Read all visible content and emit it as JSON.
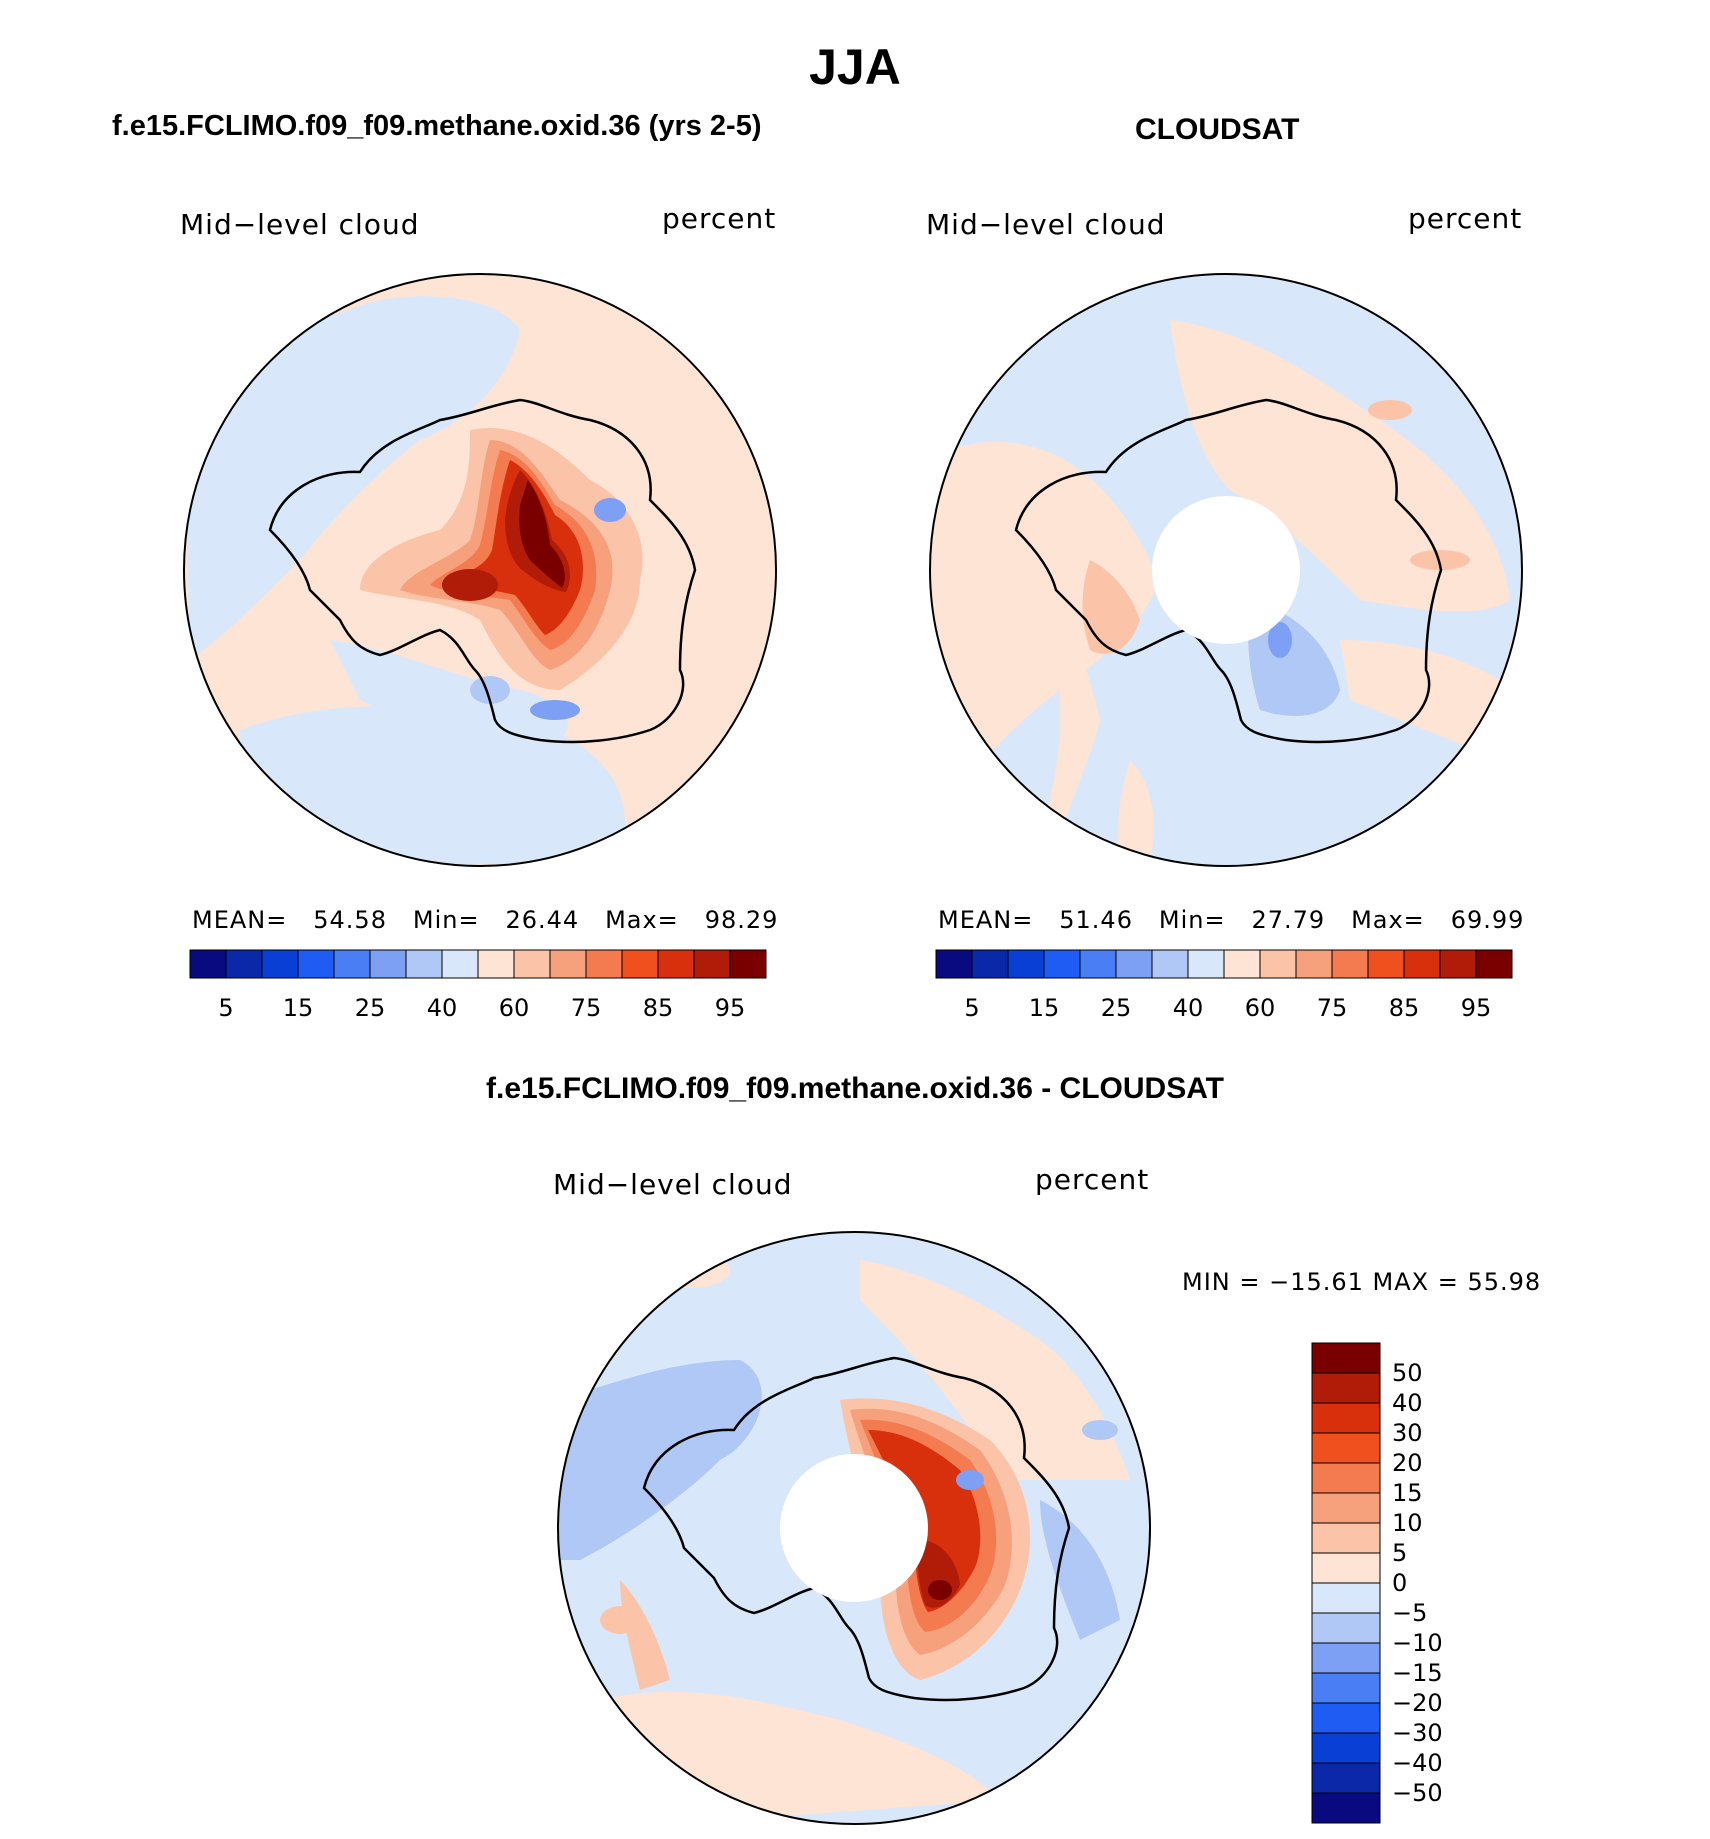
{
  "main_title": "JJA",
  "panels": {
    "left": {
      "case_title": "f.e15.FCLIMO.f09_f09.methane.oxid.36 (yrs 2-5)",
      "variable": "Mid−level cloud",
      "units": "percent",
      "stats": {
        "mean_label": "MEAN=",
        "mean": "54.58",
        "min_label": "Min=",
        "min": "26.44",
        "max_label": "Max=",
        "max": "98.29"
      }
    },
    "right": {
      "case_title": "CLOUDSAT",
      "variable": "Mid−level cloud",
      "units": "percent",
      "stats": {
        "mean_label": "MEAN=",
        "mean": "51.46",
        "min_label": "Min=",
        "min": "27.79",
        "max_label": "Max=",
        "max": "69.99"
      }
    },
    "diff": {
      "case_title": "f.e15.FCLIMO.f09_f09.methane.oxid.36 - CLOUDSAT",
      "variable": "Mid−level cloud",
      "units": "percent",
      "minmax": "MIN = −15.61 MAX =   55.98"
    }
  },
  "abs_colorbar": {
    "colors": [
      "#0a0a80",
      "#0a28a8",
      "#0a3fd6",
      "#1f5cf4",
      "#4a7ef4",
      "#7d9ff4",
      "#b0c8f6",
      "#d8e8fa",
      "#fde4d4",
      "#fbc4a8",
      "#f6a07c",
      "#f47a50",
      "#f0501e",
      "#d8300c",
      "#b01c08",
      "#7a0000"
    ],
    "tick_labels": [
      "5",
      "15",
      "25",
      "40",
      "60",
      "75",
      "85",
      "95"
    ]
  },
  "diff_colorbar": {
    "colors": [
      "#7a0000",
      "#b01c08",
      "#d8300c",
      "#f0501e",
      "#f47a50",
      "#f6a07c",
      "#fbc4a8",
      "#fde4d4",
      "#d8e8fa",
      "#b0c8f6",
      "#7d9ff4",
      "#4a7ef4",
      "#1f5cf4",
      "#0a3fd6",
      "#0a28a8",
      "#0a0a80"
    ],
    "tick_labels": [
      "50",
      "40",
      "30",
      "20",
      "15",
      "10",
      "5",
      "0",
      "−5",
      "−10",
      "−15",
      "−20",
      "−30",
      "−40",
      "−50"
    ]
  },
  "palette": {
    "light_blue": "#d8e8fa",
    "light_red": "#fde4d4",
    "mid_blue": "#b0c8f6",
    "salmon": "#fbc4a8",
    "orange": "#f47a50",
    "red": "#d8300c",
    "dark_red": "#7a0000",
    "blue": "#4a7ef4"
  }
}
